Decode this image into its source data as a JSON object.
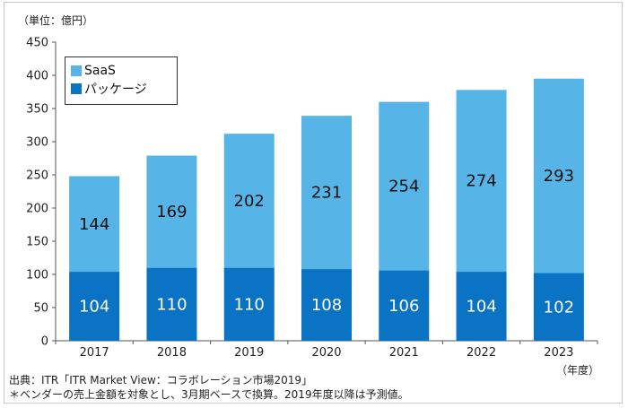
{
  "chart_data": {
    "type": "bar",
    "stacked": true,
    "unit_label": "（単位：億円）",
    "categories": [
      "2017",
      "2018",
      "2019",
      "2020",
      "2021",
      "2022",
      "2023"
    ],
    "series": [
      {
        "name": "パッケージ",
        "values": [
          104,
          110,
          110,
          108,
          106,
          104,
          102
        ],
        "color": "#0a73c4"
      },
      {
        "name": "SaaS",
        "values": [
          144,
          169,
          202,
          231,
          254,
          274,
          293
        ],
        "color": "#56b4e6"
      }
    ],
    "ylim": [
      0,
      450
    ],
    "yticks": [
      "0",
      "50",
      "100",
      "150",
      "200",
      "250",
      "300",
      "350",
      "400",
      "450"
    ],
    "x_unit": "（年度）",
    "legend_placement": "top-left",
    "grid": false
  },
  "footer": {
    "source": "出典：ITR「ITR Market View：コラボレーション市場2019」",
    "note": "＊ベンダーの売上金額を対象とし、3月期ベースで換算。2019年度以降は予測値。"
  }
}
